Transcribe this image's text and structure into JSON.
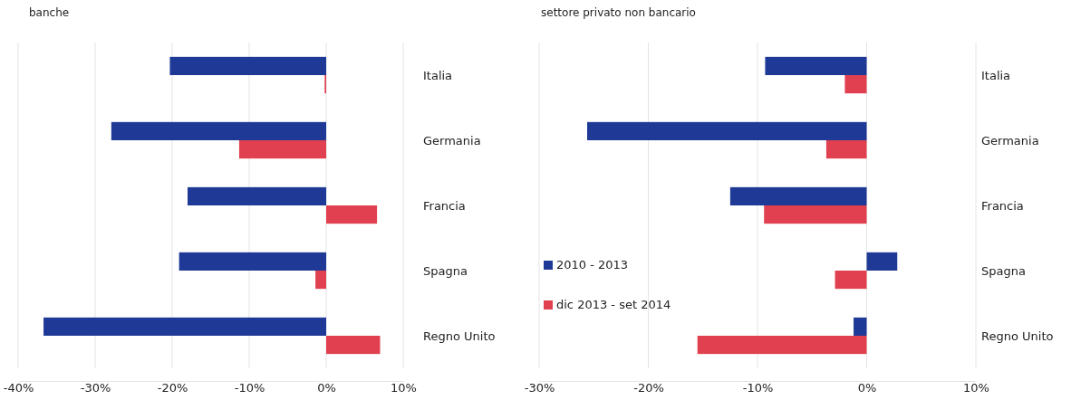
{
  "chart_data": [
    {
      "type": "bar",
      "orientation": "horizontal",
      "title": "banche",
      "categories": [
        "Italia",
        "Germania",
        "Francia",
        "Spagna",
        "Regno Unito"
      ],
      "series": [
        {
          "color": "#1f3a96",
          "values": [
            -20.3,
            -27.9,
            -18.0,
            -19.1,
            -36.7
          ]
        },
        {
          "color": "#e0404f",
          "values": [
            -0.2,
            -11.3,
            6.6,
            -1.4,
            7.0
          ]
        }
      ],
      "xlim": [
        -40,
        10
      ],
      "xticks": [
        {
          "value": -40,
          "label": "-40%"
        },
        {
          "value": -30,
          "label": "-30%"
        },
        {
          "value": -20,
          "label": "-20%"
        },
        {
          "value": -10,
          "label": "-10%"
        },
        {
          "value": 0,
          "label": "0%"
        },
        {
          "value": 10,
          "label": "10%"
        }
      ],
      "grid": "x",
      "legend": false
    },
    {
      "type": "bar",
      "orientation": "horizontal",
      "title": "settore privato non bancario",
      "categories": [
        "Italia",
        "Germania",
        "Francia",
        "Spagna",
        "Regno Unito"
      ],
      "series": [
        {
          "name": "2010 - 2013",
          "color": "#1f3a96",
          "values": [
            -9.3,
            -25.6,
            -12.5,
            2.8,
            -1.2
          ]
        },
        {
          "name": "dic 2013 - set 2014",
          "color": "#e0404f",
          "values": [
            -2.0,
            -3.7,
            -9.4,
            -2.9,
            -15.5
          ]
        }
      ],
      "xlim": [
        -30,
        10
      ],
      "xticks": [
        {
          "value": -30,
          "label": "-30%"
        },
        {
          "value": -20,
          "label": "-20%"
        },
        {
          "value": -10,
          "label": "-10%"
        },
        {
          "value": 0,
          "label": "0%"
        },
        {
          "value": 10,
          "label": "10%"
        }
      ],
      "grid": "x",
      "legend": "bottom left"
    }
  ]
}
